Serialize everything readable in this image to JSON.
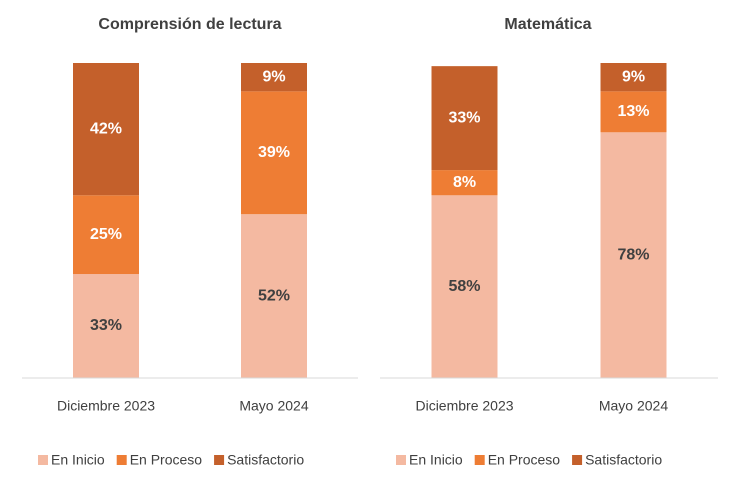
{
  "chart_data": [
    {
      "type": "bar",
      "stacked": true,
      "title": "Comprensión de lectura",
      "categories": [
        "Diciembre 2023",
        "Mayo 2024"
      ],
      "ylim": [
        0,
        100
      ],
      "series": [
        {
          "name": "En Inicio",
          "color": "#f4b9a1",
          "values": [
            33,
            52
          ],
          "value_labels": [
            "33%",
            "52%"
          ]
        },
        {
          "name": "En Proceso",
          "color": "#ee7d34",
          "values": [
            25,
            39
          ],
          "value_labels": [
            "25%",
            "39%"
          ]
        },
        {
          "name": "Satisfactorio",
          "color": "#c4602b",
          "values": [
            42,
            9
          ],
          "value_labels": [
            "42%",
            "9%"
          ]
        }
      ]
    },
    {
      "type": "bar",
      "stacked": true,
      "title": "Matemática",
      "categories": [
        "Diciembre 2023",
        "Mayo 2024"
      ],
      "ylim": [
        0,
        100
      ],
      "series": [
        {
          "name": "En Inicio",
          "color": "#f4b9a1",
          "values": [
            58,
            78
          ],
          "value_labels": [
            "58%",
            "78%"
          ]
        },
        {
          "name": "En Proceso",
          "color": "#ee7d34",
          "values": [
            8,
            13
          ],
          "value_labels": [
            "8%",
            "13%"
          ]
        },
        {
          "name": "Satisfactorio",
          "color": "#c4602b",
          "values": [
            33,
            9
          ],
          "value_labels": [
            "33%",
            "9%"
          ]
        }
      ]
    }
  ]
}
